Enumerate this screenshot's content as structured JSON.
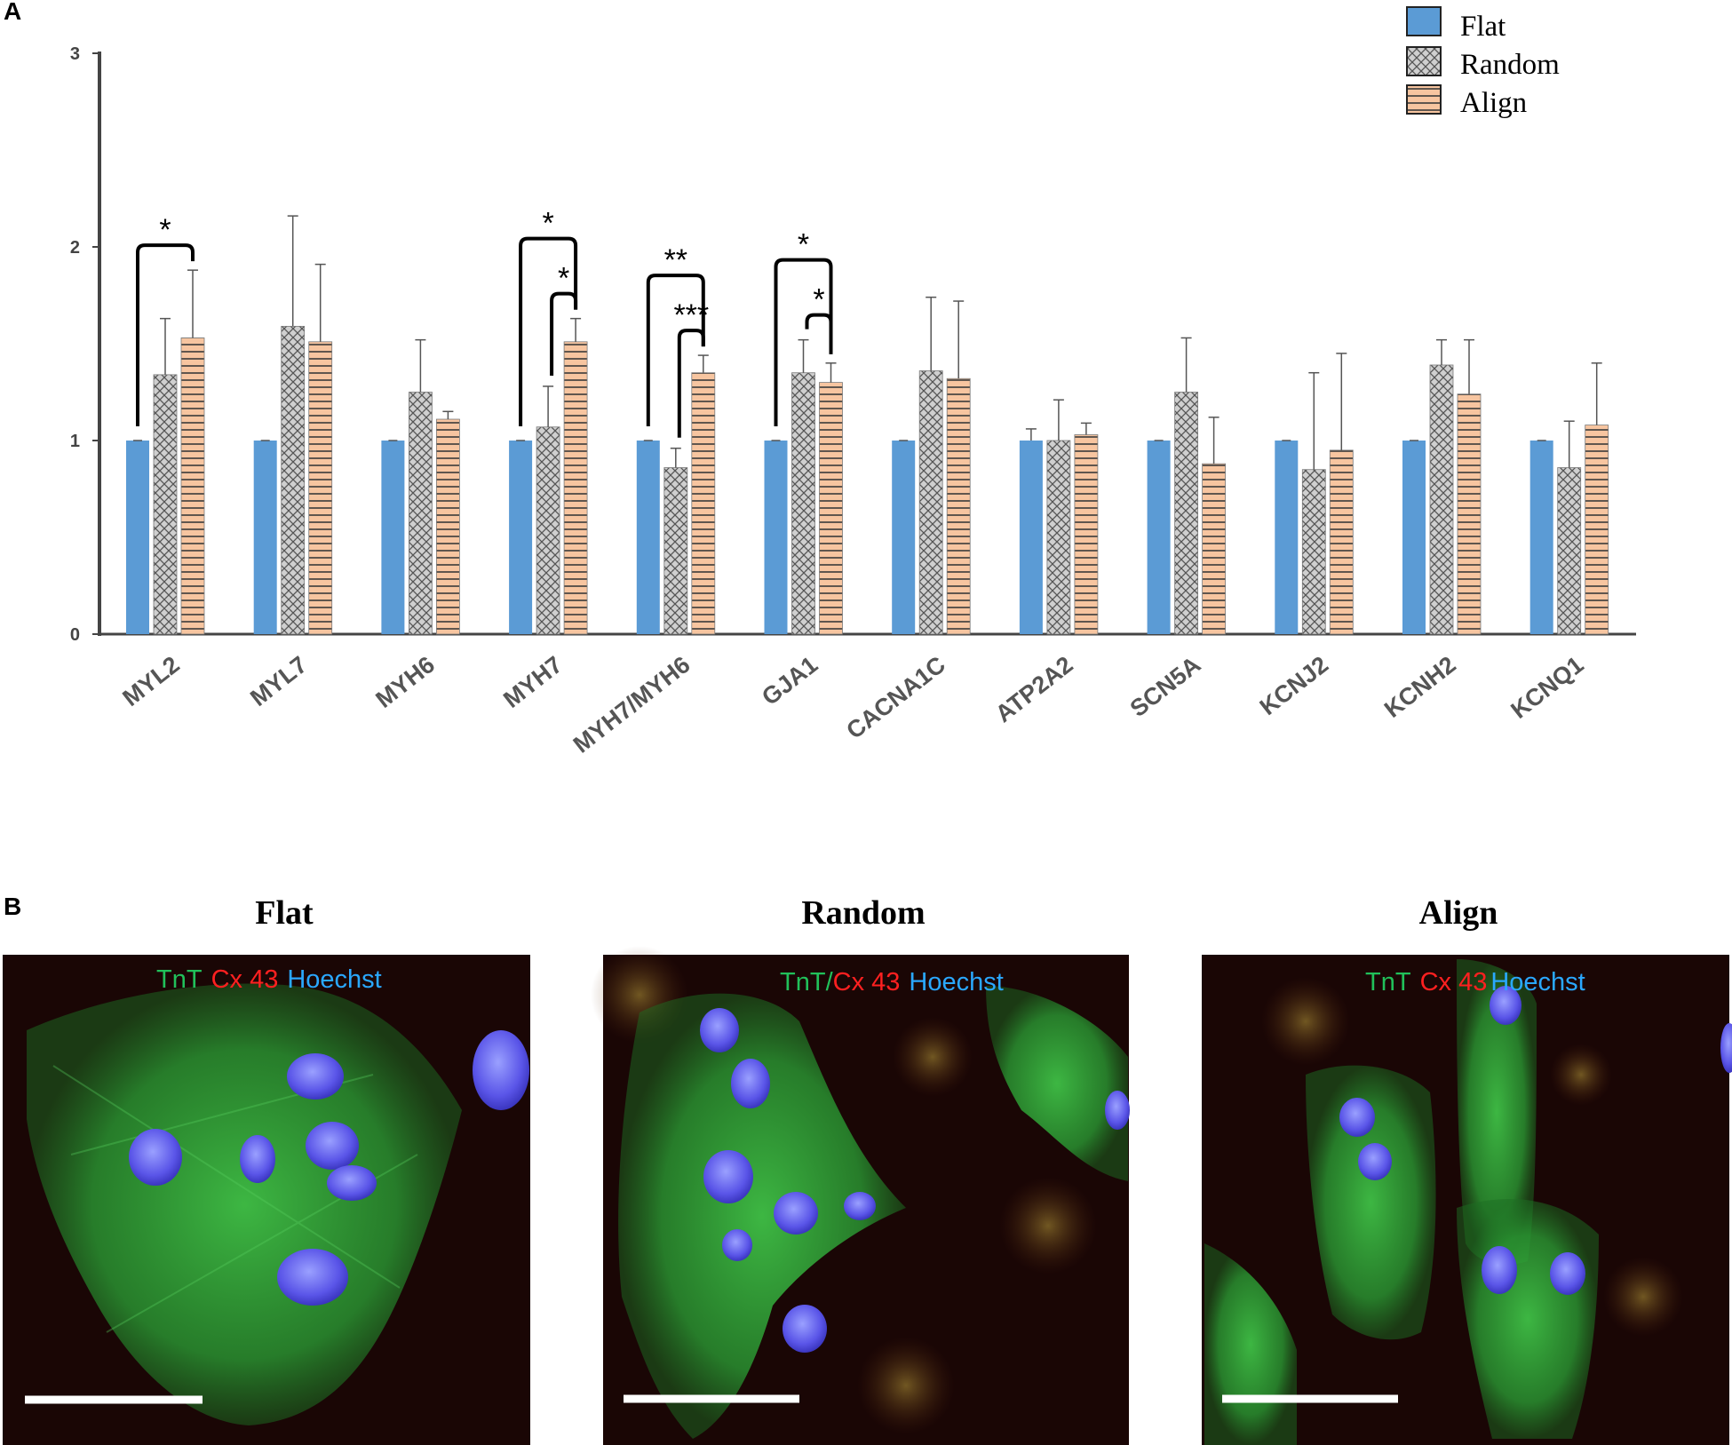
{
  "panels": {
    "a": "A",
    "b": "B"
  },
  "colors": {
    "flat": "#5b9bd5",
    "random": "#c9c9c9",
    "align": "#f4b183",
    "axis": "#444444",
    "tnt": "#21c05a",
    "cx43": "#ff2020",
    "hoechst": "#2aa8ff"
  },
  "chart_data": {
    "type": "bar",
    "categories": [
      "MYL2",
      "MYL7",
      "MYH6",
      "MYH7",
      "MYH7/MYH6",
      "GJA1",
      "CACNA1C",
      "ATP2A2",
      "SCN5A",
      "KCNJ2",
      "KCNH2",
      "KCNQ1"
    ],
    "series": [
      {
        "name": "Flat",
        "values": [
          1,
          1,
          1,
          1,
          1,
          1,
          1,
          1,
          1,
          1,
          1,
          1
        ],
        "errors": [
          0,
          0,
          0,
          0,
          0,
          0,
          0,
          0.06,
          0,
          0,
          0,
          0
        ],
        "pattern": "solid"
      },
      {
        "name": "Random",
        "values": [
          1.34,
          1.59,
          1.25,
          1.07,
          0.86,
          1.35,
          1.36,
          1.0,
          1.25,
          0.85,
          1.39,
          0.86
        ],
        "errors": [
          0.29,
          0.57,
          0.27,
          0.21,
          0.1,
          0.17,
          0.38,
          0.21,
          0.28,
          0.5,
          0.13,
          0.24
        ],
        "pattern": "crosshatch"
      },
      {
        "name": "Align",
        "values": [
          1.53,
          1.51,
          1.11,
          1.51,
          1.35,
          1.3,
          1.32,
          1.03,
          0.88,
          0.95,
          1.24,
          1.08
        ],
        "errors": [
          0.35,
          0.4,
          0.04,
          0.12,
          0.09,
          0.1,
          0.4,
          0.06,
          0.24,
          0.5,
          0.28,
          0.32
        ],
        "pattern": "horizontal-lines"
      }
    ],
    "ylim": [
      0,
      3
    ],
    "yticks": [
      "0",
      "1",
      "2",
      "3"
    ],
    "legend": "top-right",
    "grid": false,
    "significance": [
      {
        "category": 0,
        "from": 0,
        "to": 2,
        "label": "*",
        "level": 1
      },
      {
        "category": 3,
        "from": 0,
        "to": 2,
        "label": "*",
        "level": 2
      },
      {
        "category": 3,
        "from": 1,
        "to": 2,
        "label": "*",
        "level": 1
      },
      {
        "category": 4,
        "from": 0,
        "to": 2,
        "label": "**",
        "level": 2
      },
      {
        "category": 4,
        "from": 1,
        "to": 2,
        "label": "***",
        "level": 1
      },
      {
        "category": 5,
        "from": 0,
        "to": 2,
        "label": "*",
        "level": 2
      },
      {
        "category": 5,
        "from": 1,
        "to": 2,
        "label": "*",
        "level": 1
      }
    ]
  },
  "micrographs": [
    {
      "title": "Flat",
      "stain": {
        "tnt": "TnT",
        "cx43": "Cx 43",
        "hoechst": "Hoechst"
      }
    },
    {
      "title": "Random",
      "stain": {
        "tnt": "TnT",
        "sep": "/",
        "cx43": "Cx 43",
        "hoechst": "Hoechst"
      }
    },
    {
      "title": "Align",
      "stain": {
        "tnt": "TnT",
        "cx43": "Cx 43",
        "hoechst": "Hoechst"
      }
    }
  ]
}
